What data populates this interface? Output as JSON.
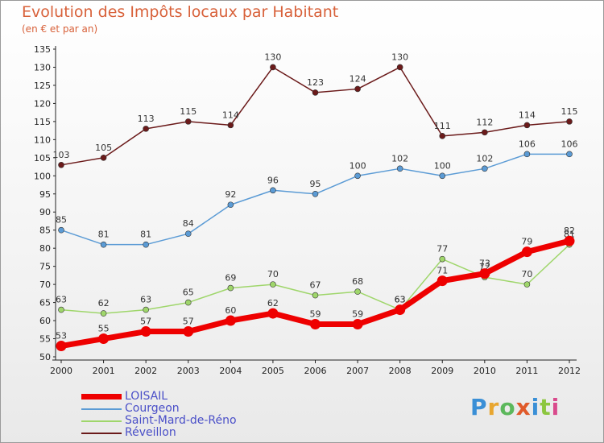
{
  "title": "Evolution des Impôts locaux par Habitant",
  "subtitle": "(en € et par an)",
  "logo": {
    "text": "Proxiti",
    "colors": [
      "#3a8fd6",
      "#e8a630",
      "#5cb85c",
      "#e05a2a",
      "#3a8fd6",
      "#8cc63f",
      "#d94a8c"
    ]
  },
  "chart_data": {
    "type": "line",
    "x": [
      "2000",
      "2001",
      "2002",
      "2003",
      "2004",
      "2005",
      "2006",
      "2007",
      "2008",
      "2009",
      "2010",
      "2011",
      "2012"
    ],
    "ylim": [
      50,
      135
    ],
    "yticks": [
      50,
      55,
      60,
      65,
      70,
      75,
      80,
      85,
      90,
      95,
      100,
      105,
      110,
      115,
      120,
      125,
      130,
      135
    ],
    "grid": false,
    "legend_position": "bottom-left",
    "series": [
      {
        "name": "Réveillon",
        "color": "#6b1a1a",
        "values": [
          103,
          105,
          113,
          115,
          114,
          130,
          123,
          124,
          130,
          111,
          112,
          114,
          115
        ]
      },
      {
        "name": "Courgeon",
        "color": "#5b9bd5",
        "values": [
          85,
          81,
          81,
          84,
          92,
          96,
          95,
          100,
          102,
          100,
          102,
          106,
          106
        ]
      },
      {
        "name": "Saint-Mard-de-Réno",
        "color": "#9fd66b",
        "values": [
          63,
          62,
          63,
          65,
          69,
          70,
          67,
          68,
          63,
          77,
          72,
          70,
          81
        ]
      },
      {
        "name": "LOISAIL",
        "color": "#ee0000",
        "values": [
          53,
          55,
          57,
          57,
          60,
          62,
          59,
          59,
          63,
          71,
          73,
          79,
          82
        ]
      }
    ]
  },
  "legend": [
    {
      "name": "LOISAIL",
      "color": "#ee0000"
    },
    {
      "name": "Courgeon",
      "color": "#5b9bd5"
    },
    {
      "name": "Saint-Mard-de-Réno",
      "color": "#9fd66b"
    },
    {
      "name": "Réveillon",
      "color": "#6b1a1a"
    }
  ]
}
